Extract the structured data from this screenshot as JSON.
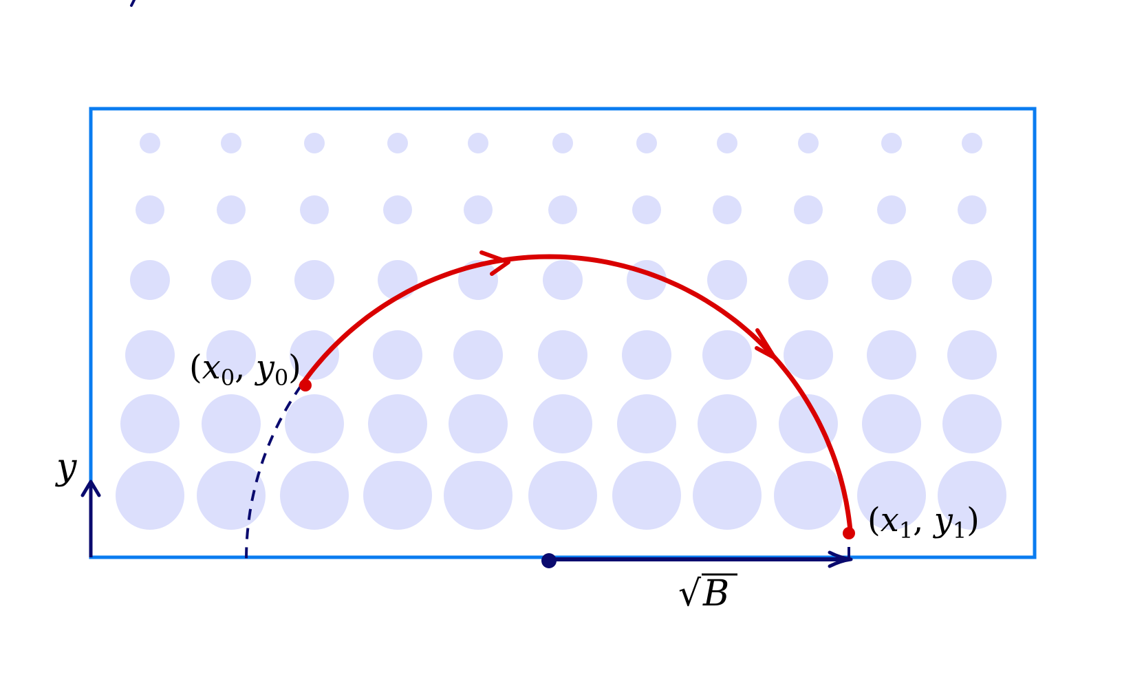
{
  "labels": {
    "start_point": {
      "paren_open": "(",
      "x": "x",
      "x_sub": "0",
      "comma": ", ",
      "y": "y",
      "y_sub": "0",
      "paren_close": ")"
    },
    "end_point": {
      "paren_open": "(",
      "x": "x",
      "x_sub": "1",
      "comma": ", ",
      "y": "y",
      "y_sub": "1",
      "paren_close": ")"
    },
    "y_axis": "y",
    "radius": {
      "sqrt_symbol": "√",
      "var": "B"
    }
  },
  "colors": {
    "frame": "#0a7cf0",
    "dots": "#dcdffc",
    "arc": "#d90000",
    "axis": "#0a0a6e",
    "text": "#000000"
  },
  "dot_grid": {
    "columns": 11,
    "rows": 6,
    "size_trend": "dots grow larger toward the bottom of the rectangle"
  }
}
